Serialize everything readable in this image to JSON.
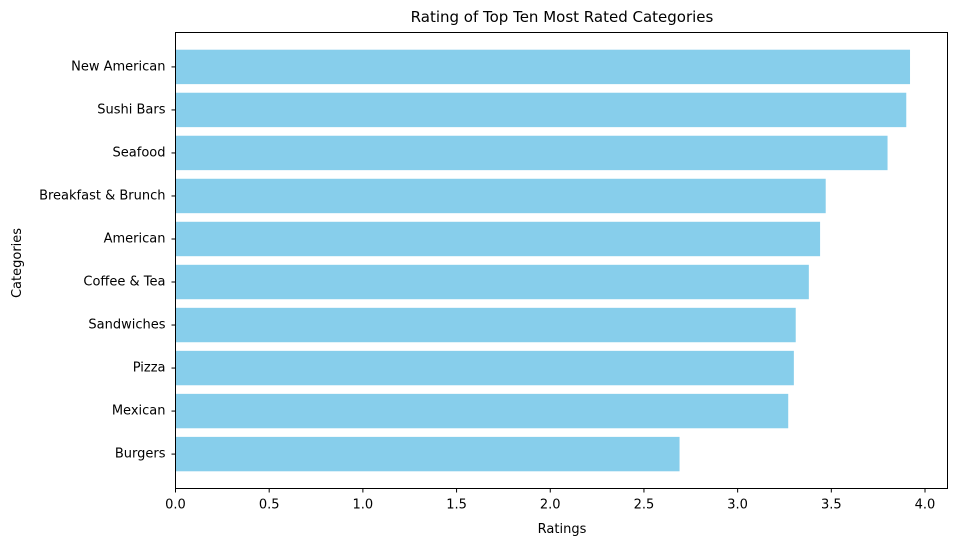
{
  "chart_data": {
    "type": "bar",
    "orientation": "horizontal",
    "title": "Rating of Top Ten Most Rated Categories",
    "xlabel": "Ratings",
    "ylabel": "Categories",
    "categories": [
      "New American",
      "Sushi Bars",
      "Seafood",
      "Breakfast & Brunch",
      "American",
      "Coffee & Tea",
      "Sandwiches",
      "Pizza",
      "Mexican",
      "Burgers"
    ],
    "values": [
      3.92,
      3.9,
      3.8,
      3.47,
      3.44,
      3.38,
      3.31,
      3.3,
      3.27,
      2.69
    ],
    "xlim": [
      0,
      4.12
    ],
    "xticks": [
      "0.0",
      "0.5",
      "1.0",
      "1.5",
      "2.0",
      "2.5",
      "3.0",
      "3.5",
      "4.0"
    ],
    "bar_color": "#87CEEB",
    "grid": false,
    "legend": false
  }
}
